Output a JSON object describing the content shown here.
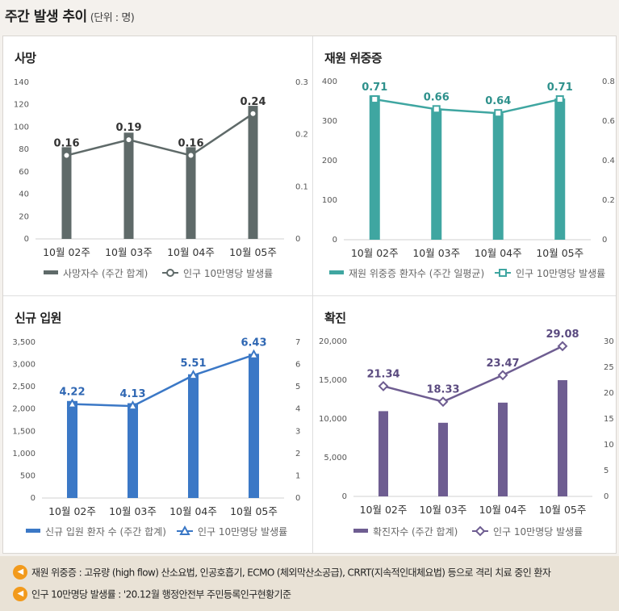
{
  "page": {
    "title": "주간 발생 추이",
    "unit": "(단위 : 명)"
  },
  "chart_data": [
    {
      "type": "bar",
      "title": "사망",
      "categories": [
        "10월 02주",
        "10월 03주",
        "10월 04주",
        "10월 05주"
      ],
      "series": [
        {
          "name": "사망자수 (주간 합계)",
          "axis": "left",
          "kind": "bar",
          "values": [
            82,
            95,
            82,
            119
          ],
          "color": "#5f6a69"
        },
        {
          "name": "인구 10만명당 발생률",
          "axis": "right",
          "kind": "line",
          "marker": "circle",
          "values": [
            0.16,
            0.19,
            0.16,
            0.24
          ],
          "labels": [
            "0.16",
            "0.19",
            "0.16",
            "0.24"
          ],
          "color": "#5f6a69"
        }
      ],
      "ylim": [
        0,
        140
      ],
      "yticks": [
        0,
        20,
        40,
        60,
        80,
        100,
        120,
        140
      ],
      "ytick_labels": [
        "0",
        "20",
        "40",
        "60",
        "80",
        "100",
        "120",
        "140"
      ],
      "y2lim": [
        0,
        0.3
      ],
      "y2ticks": [
        0,
        0.1,
        0.2,
        0.3
      ],
      "y2tick_labels": [
        "0",
        "0.1",
        "0.2",
        "0.3"
      ],
      "label_color": "#333333",
      "legend_position": "bottom"
    },
    {
      "type": "bar",
      "title": "재원 위중증",
      "categories": [
        "10월 02주",
        "10월 03주",
        "10월 04주",
        "10월 05주"
      ],
      "series": [
        {
          "name": "재원 위중증 환자수 (주간 일평균)",
          "axis": "left",
          "kind": "bar",
          "values": [
            365,
            332,
            320,
            357
          ],
          "color": "#3fa6a1"
        },
        {
          "name": "인구 10만명당 발생률",
          "axis": "right",
          "kind": "line",
          "marker": "square",
          "values": [
            0.71,
            0.66,
            0.64,
            0.71
          ],
          "labels": [
            "0.71",
            "0.66",
            "0.64",
            "0.71"
          ],
          "color": "#3fa6a1"
        }
      ],
      "ylim": [
        0,
        400
      ],
      "yticks": [
        0,
        100,
        200,
        300,
        400
      ],
      "ytick_labels": [
        "0",
        "100",
        "200",
        "300",
        "400"
      ],
      "y2lim": [
        0,
        0.8
      ],
      "y2ticks": [
        0,
        0.2,
        0.4,
        0.6,
        0.8
      ],
      "y2tick_labels": [
        "0",
        "0.2",
        "0.4",
        "0.6",
        "0.8"
      ],
      "label_color": "#2e918c",
      "legend_position": "bottom"
    },
    {
      "type": "bar",
      "title": "신규 입원",
      "categories": [
        "10월 02주",
        "10월 03주",
        "10월 04주",
        "10월 05주"
      ],
      "series": [
        {
          "name": "신규 입원 환자 수 (주간 합계)",
          "axis": "left",
          "kind": "bar",
          "values": [
            2180,
            2130,
            2780,
            3240
          ],
          "color": "#3b78c6"
        },
        {
          "name": "인구 10만명당 발생률",
          "axis": "right",
          "kind": "line",
          "marker": "triangle",
          "values": [
            4.22,
            4.13,
            5.51,
            6.43
          ],
          "labels": [
            "4.22",
            "4.13",
            "5.51",
            "6.43"
          ],
          "color": "#3b78c6"
        }
      ],
      "ylim": [
        0,
        3500
      ],
      "yticks": [
        0,
        500,
        1000,
        1500,
        2000,
        2500,
        3000,
        3500
      ],
      "ytick_labels": [
        "0",
        "500",
        "1,000",
        "1,500",
        "2,000",
        "2,500",
        "3,000",
        "3,500"
      ],
      "y2lim": [
        0,
        7
      ],
      "y2ticks": [
        0,
        1,
        2,
        3,
        4,
        5,
        6,
        7
      ],
      "y2tick_labels": [
        "0",
        "1",
        "2",
        "3",
        "4",
        "5",
        "6",
        "7"
      ],
      "label_color": "#2f67b3",
      "legend_position": "bottom"
    },
    {
      "type": "bar",
      "title": "확진",
      "categories": [
        "10월 02주",
        "10월 03주",
        "10월 04주",
        "10월 05주"
      ],
      "series": [
        {
          "name": "확진자수 (주간 합계)",
          "axis": "left",
          "kind": "bar",
          "values": [
            11000,
            9500,
            12100,
            15000
          ],
          "color": "#6e5d91"
        },
        {
          "name": "인구 10만명당 발생률",
          "axis": "right",
          "kind": "line",
          "marker": "diamond",
          "values": [
            21.34,
            18.33,
            23.47,
            29.08
          ],
          "labels": [
            "21.34",
            "18.33",
            "23.47",
            "29.08"
          ],
          "color": "#6e5d91"
        }
      ],
      "ylim": [
        0,
        20000
      ],
      "yticks": [
        0,
        5000,
        10000,
        15000,
        20000
      ],
      "ytick_labels": [
        "0",
        "5,000",
        "10,000",
        "15,000",
        "20,000"
      ],
      "y2lim": [
        0,
        30
      ],
      "y2ticks": [
        0,
        5,
        10,
        15,
        20,
        25,
        30
      ],
      "y2tick_labels": [
        "0",
        "5",
        "10",
        "15",
        "20",
        "25",
        "30"
      ],
      "label_color": "#5b4b80",
      "legend_position": "bottom"
    }
  ],
  "notes": [
    "재원 위중증 : 고유량 (high flow) 산소요법, 인공호흡기, ECMO (체외막산소공급), CRRT(지속적인대체요법) 등으로 격리 치료 중인 환자",
    "인구 10만명당 발생률 : '20.12월 행정안전부 주민등록인구현황기준"
  ],
  "icons": {
    "note_bullet": "speaker-icon"
  },
  "colors": {
    "background": "#f4f1ed",
    "notes_background": "#e9e2d6",
    "bullet": "#f29a1c"
  }
}
